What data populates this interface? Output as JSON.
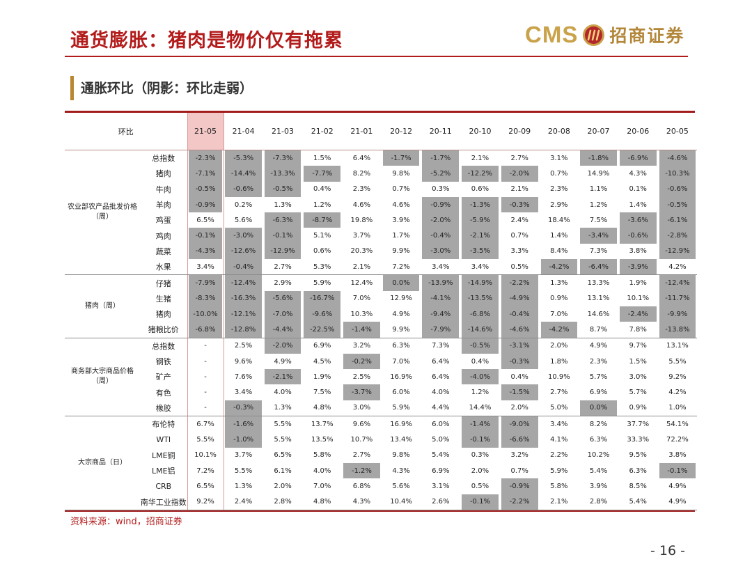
{
  "header": {
    "title": "通货膨胀：猪肉是物价仅有拖累",
    "logo_latin": "CMS",
    "logo_cn": "招商证券"
  },
  "subtitle": "通胀环比（阴影：环比走弱）",
  "table": {
    "corner_label": "环比",
    "columns": [
      "21-05",
      "21-04",
      "21-03",
      "21-02",
      "21-01",
      "20-12",
      "20-11",
      "20-10",
      "20-09",
      "20-08",
      "20-07",
      "20-06",
      "20-05"
    ],
    "groups": [
      {
        "label": "农业部农产品批发价格（周）",
        "rows": [
          {
            "name": "总指数",
            "values": [
              "-2.3%",
              "-5.3%",
              "-7.3%",
              "1.5%",
              "6.4%",
              "-1.7%",
              "-1.7%",
              "2.1%",
              "2.7%",
              "3.1%",
              "-1.8%",
              "-6.9%",
              "-4.6%"
            ],
            "shaded": [
              1,
              1,
              1,
              0,
              0,
              1,
              1,
              0,
              0,
              0,
              1,
              1,
              1
            ]
          },
          {
            "name": "猪肉",
            "values": [
              "-7.1%",
              "-14.4%",
              "-13.3%",
              "-7.7%",
              "8.2%",
              "9.8%",
              "-5.2%",
              "-12.2%",
              "-2.0%",
              "0.7%",
              "14.9%",
              "4.3%",
              "-10.3%"
            ],
            "shaded": [
              1,
              1,
              1,
              1,
              0,
              0,
              1,
              1,
              1,
              0,
              0,
              0,
              1
            ]
          },
          {
            "name": "牛肉",
            "values": [
              "-0.5%",
              "-0.6%",
              "-0.5%",
              "0.4%",
              "2.3%",
              "0.7%",
              "0.3%",
              "0.6%",
              "2.1%",
              "2.3%",
              "1.1%",
              "0.1%",
              "-0.6%"
            ],
            "shaded": [
              1,
              1,
              1,
              0,
              0,
              0,
              0,
              0,
              0,
              0,
              0,
              0,
              1
            ]
          },
          {
            "name": "羊肉",
            "values": [
              "-0.9%",
              "0.2%",
              "1.3%",
              "1.2%",
              "4.6%",
              "4.6%",
              "-0.9%",
              "-1.3%",
              "-0.3%",
              "2.9%",
              "1.2%",
              "1.4%",
              "-0.5%"
            ],
            "shaded": [
              1,
              0,
              0,
              0,
              0,
              0,
              1,
              1,
              1,
              0,
              0,
              0,
              1
            ]
          },
          {
            "name": "鸡蛋",
            "values": [
              "6.5%",
              "5.6%",
              "-6.3%",
              "-8.7%",
              "19.8%",
              "3.9%",
              "-2.0%",
              "-5.9%",
              "2.4%",
              "18.4%",
              "7.5%",
              "-3.6%",
              "-6.1%"
            ],
            "shaded": [
              0,
              0,
              1,
              1,
              0,
              0,
              1,
              1,
              0,
              0,
              0,
              1,
              1
            ]
          },
          {
            "name": "鸡肉",
            "values": [
              "-0.1%",
              "-3.0%",
              "-0.1%",
              "5.1%",
              "3.7%",
              "1.7%",
              "-0.4%",
              "-2.1%",
              "0.7%",
              "1.4%",
              "-3.4%",
              "-0.6%",
              "-2.8%"
            ],
            "shaded": [
              1,
              1,
              1,
              0,
              0,
              0,
              1,
              1,
              0,
              0,
              1,
              1,
              1
            ]
          },
          {
            "name": "蔬菜",
            "values": [
              "-4.3%",
              "-12.6%",
              "-12.9%",
              "0.6%",
              "20.3%",
              "9.9%",
              "-3.0%",
              "-3.5%",
              "3.3%",
              "8.4%",
              "7.3%",
              "3.8%",
              "-12.9%"
            ],
            "shaded": [
              1,
              1,
              1,
              0,
              0,
              0,
              1,
              1,
              0,
              0,
              0,
              0,
              1
            ]
          },
          {
            "name": "水果",
            "values": [
              "3.4%",
              "-0.4%",
              "2.7%",
              "5.3%",
              "2.1%",
              "7.2%",
              "3.4%",
              "3.4%",
              "0.5%",
              "-4.2%",
              "-6.4%",
              "-3.9%",
              "4.2%"
            ],
            "shaded": [
              0,
              1,
              0,
              0,
              0,
              0,
              0,
              0,
              0,
              1,
              1,
              1,
              0
            ]
          }
        ]
      },
      {
        "label": "猪肉（周）",
        "rows": [
          {
            "name": "仔猪",
            "values": [
              "-7.9%",
              "-12.4%",
              "2.9%",
              "5.9%",
              "12.4%",
              "0.0%",
              "-13.9%",
              "-14.9%",
              "-2.2%",
              "1.3%",
              "13.3%",
              "1.9%",
              "-12.4%"
            ],
            "shaded": [
              1,
              1,
              0,
              0,
              0,
              1,
              1,
              1,
              1,
              0,
              0,
              0,
              1
            ]
          },
          {
            "name": "生猪",
            "values": [
              "-8.3%",
              "-16.3%",
              "-5.6%",
              "-16.7%",
              "7.0%",
              "12.9%",
              "-4.1%",
              "-13.5%",
              "-4.9%",
              "0.9%",
              "13.1%",
              "10.1%",
              "-11.7%"
            ],
            "shaded": [
              1,
              1,
              1,
              1,
              0,
              0,
              1,
              1,
              1,
              0,
              0,
              0,
              1
            ]
          },
          {
            "name": "猪肉",
            "values": [
              "-10.0%",
              "-12.1%",
              "-7.0%",
              "-9.6%",
              "10.3%",
              "4.9%",
              "-9.4%",
              "-6.8%",
              "-0.4%",
              "7.0%",
              "14.6%",
              "-2.4%",
              "-9.9%"
            ],
            "shaded": [
              1,
              1,
              1,
              1,
              0,
              0,
              1,
              1,
              1,
              0,
              0,
              1,
              1
            ]
          },
          {
            "name": "猪粮比价",
            "values": [
              "-6.8%",
              "-12.8%",
              "-4.4%",
              "-22.5%",
              "-1.4%",
              "9.9%",
              "-7.9%",
              "-14.6%",
              "-4.6%",
              "-4.2%",
              "8.7%",
              "7.8%",
              "-13.8%"
            ],
            "shaded": [
              1,
              1,
              1,
              1,
              1,
              0,
              1,
              1,
              1,
              1,
              0,
              0,
              1
            ]
          }
        ]
      },
      {
        "label": "商务部大宗商品价格（周）",
        "rows": [
          {
            "name": "总指数",
            "values": [
              "-",
              "2.5%",
              "-2.0%",
              "6.9%",
              "3.2%",
              "6.3%",
              "7.3%",
              "-0.5%",
              "-3.1%",
              "2.0%",
              "4.9%",
              "9.7%",
              "13.1%"
            ],
            "shaded": [
              0,
              0,
              1,
              0,
              0,
              0,
              0,
              1,
              1,
              0,
              0,
              0,
              0
            ]
          },
          {
            "name": "钢铁",
            "values": [
              "-",
              "9.6%",
              "4.9%",
              "4.5%",
              "-0.2%",
              "7.0%",
              "6.4%",
              "0.4%",
              "-0.3%",
              "1.8%",
              "2.3%",
              "1.5%",
              "5.5%"
            ],
            "shaded": [
              0,
              0,
              0,
              0,
              1,
              0,
              0,
              0,
              1,
              0,
              0,
              0,
              0
            ]
          },
          {
            "name": "矿产",
            "values": [
              "-",
              "7.6%",
              "-2.1%",
              "1.9%",
              "2.5%",
              "16.9%",
              "6.4%",
              "-4.0%",
              "0.4%",
              "10.9%",
              "5.7%",
              "3.0%",
              "9.2%"
            ],
            "shaded": [
              0,
              0,
              1,
              0,
              0,
              0,
              0,
              1,
              0,
              0,
              0,
              0,
              0
            ]
          },
          {
            "name": "有色",
            "values": [
              "-",
              "3.4%",
              "4.0%",
              "7.5%",
              "-3.7%",
              "6.0%",
              "4.0%",
              "1.2%",
              "-1.5%",
              "2.7%",
              "6.9%",
              "5.7%",
              "4.2%"
            ],
            "shaded": [
              0,
              0,
              0,
              0,
              1,
              0,
              0,
              0,
              1,
              0,
              0,
              0,
              0
            ]
          },
          {
            "name": "橡胶",
            "values": [
              "-",
              "-0.3%",
              "1.3%",
              "4.8%",
              "3.0%",
              "5.9%",
              "4.4%",
              "14.4%",
              "2.0%",
              "5.0%",
              "0.0%",
              "0.9%",
              "1.0%"
            ],
            "shaded": [
              0,
              1,
              0,
              0,
              0,
              0,
              0,
              0,
              0,
              0,
              1,
              0,
              0
            ]
          }
        ]
      },
      {
        "label": "大宗商品（日）",
        "rows": [
          {
            "name": "布伦特",
            "values": [
              "6.7%",
              "-1.6%",
              "5.5%",
              "13.7%",
              "9.6%",
              "16.9%",
              "6.0%",
              "-1.4%",
              "-9.0%",
              "3.4%",
              "8.2%",
              "37.7%",
              "54.1%"
            ],
            "shaded": [
              0,
              1,
              0,
              0,
              0,
              0,
              0,
              1,
              1,
              0,
              0,
              0,
              0
            ]
          },
          {
            "name": "WTI",
            "values": [
              "5.5%",
              "-1.0%",
              "5.5%",
              "13.5%",
              "10.7%",
              "13.4%",
              "5.0%",
              "-0.1%",
              "-6.6%",
              "4.1%",
              "6.3%",
              "33.3%",
              "72.2%"
            ],
            "shaded": [
              0,
              1,
              0,
              0,
              0,
              0,
              0,
              1,
              1,
              0,
              0,
              0,
              0
            ]
          },
          {
            "name": "LME铜",
            "values": [
              "10.1%",
              "3.7%",
              "6.5%",
              "5.8%",
              "2.7%",
              "9.8%",
              "5.4%",
              "0.3%",
              "3.2%",
              "2.2%",
              "10.2%",
              "9.5%",
              "3.8%"
            ],
            "shaded": [
              0,
              0,
              0,
              0,
              0,
              0,
              0,
              0,
              0,
              0,
              0,
              0,
              0
            ]
          },
          {
            "name": "LME铝",
            "values": [
              "7.2%",
              "5.5%",
              "6.1%",
              "4.0%",
              "-1.2%",
              "4.3%",
              "6.9%",
              "2.0%",
              "0.7%",
              "5.9%",
              "5.4%",
              "6.3%",
              "-0.1%"
            ],
            "shaded": [
              0,
              0,
              0,
              0,
              1,
              0,
              0,
              0,
              0,
              0,
              0,
              0,
              1
            ]
          },
          {
            "name": "CRB",
            "values": [
              "6.5%",
              "1.3%",
              "2.0%",
              "7.0%",
              "6.8%",
              "5.6%",
              "3.1%",
              "0.5%",
              "-0.9%",
              "5.8%",
              "3.9%",
              "8.5%",
              "4.9%"
            ],
            "shaded": [
              0,
              0,
              0,
              0,
              0,
              0,
              0,
              0,
              1,
              0,
              0,
              0,
              0
            ]
          },
          {
            "name": "南华工业指数",
            "values": [
              "9.2%",
              "2.4%",
              "2.8%",
              "4.8%",
              "4.3%",
              "10.4%",
              "2.6%",
              "-0.1%",
              "-2.2%",
              "2.1%",
              "2.8%",
              "5.4%",
              "4.9%"
            ],
            "shaded": [
              0,
              0,
              0,
              0,
              0,
              0,
              0,
              1,
              1,
              0,
              0,
              0,
              0
            ]
          }
        ]
      }
    ]
  },
  "source": "资料来源：wind，招商证券",
  "page_number": "- 16 -",
  "colors": {
    "title_red": "#b31b1b",
    "rule_red": "#a31c1c",
    "highlight_column": "#f4c7c7",
    "shade": "#a6a6a6",
    "logo_gold": "#c9a24a",
    "logo_red": "#b3272a"
  }
}
